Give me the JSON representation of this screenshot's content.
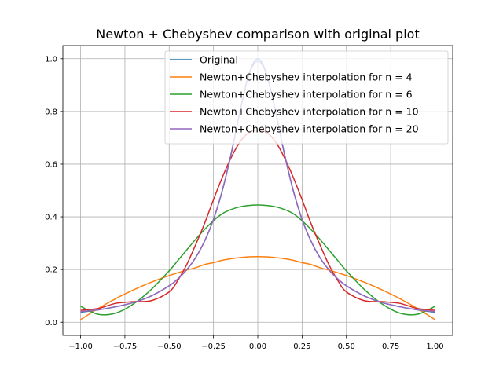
{
  "chart_data": {
    "type": "line",
    "title": "Newton + Chebyshev comparison with original plot",
    "xlabel": "",
    "ylabel": "",
    "xlim": [
      -1.1,
      1.1
    ],
    "ylim": [
      -0.05,
      1.05
    ],
    "grid": true,
    "legend_position": "top-right",
    "x_ticks": [
      -1.0,
      -0.75,
      -0.5,
      -0.25,
      0.0,
      0.25,
      0.5,
      0.75,
      1.0
    ],
    "x_tick_labels": [
      "−1.00",
      "−0.75",
      "−0.50",
      "−0.25",
      "0.00",
      "0.25",
      "0.50",
      "0.75",
      "1.00"
    ],
    "y_ticks": [
      0.0,
      0.2,
      0.4,
      0.6,
      0.8,
      1.0
    ],
    "y_tick_labels": [
      "0.0",
      "0.2",
      "0.4",
      "0.6",
      "0.8",
      "1.0"
    ],
    "x": [
      -1.0,
      -0.9,
      -0.8,
      -0.7,
      -0.6,
      -0.5,
      -0.45,
      -0.4,
      -0.35,
      -0.3,
      -0.25,
      -0.2,
      -0.15,
      -0.1,
      -0.05,
      0.0,
      0.05,
      0.1,
      0.15,
      0.2,
      0.25,
      0.3,
      0.35,
      0.4,
      0.45,
      0.5,
      0.6,
      0.7,
      0.8,
      0.9,
      1.0
    ],
    "series": [
      {
        "name": "Original",
        "color": "#1f77b4",
        "values": [
          0.038,
          0.047,
          0.059,
          0.075,
          0.1,
          0.138,
          0.165,
          0.2,
          0.246,
          0.308,
          0.39,
          0.5,
          0.64,
          0.8,
          0.941,
          1.0,
          0.941,
          0.8,
          0.64,
          0.5,
          0.39,
          0.308,
          0.246,
          0.2,
          0.165,
          0.138,
          0.1,
          0.075,
          0.059,
          0.047,
          0.038
        ]
      },
      {
        "name": "Newton+Chebyshev interpolation for n = 4",
        "color": "#ff7f0e",
        "values": [
          0.01,
          0.052,
          0.09,
          0.123,
          0.152,
          0.177,
          0.188,
          0.198,
          0.207,
          0.219,
          0.226,
          0.235,
          0.241,
          0.245,
          0.248,
          0.249,
          0.248,
          0.245,
          0.241,
          0.235,
          0.226,
          0.219,
          0.207,
          0.198,
          0.188,
          0.177,
          0.152,
          0.123,
          0.09,
          0.052,
          0.01
        ]
      },
      {
        "name": "Newton+Chebyshev interpolation for n = 6",
        "color": "#2ca02c",
        "values": [
          0.06,
          0.03,
          0.035,
          0.07,
          0.125,
          0.195,
          0.235,
          0.275,
          0.315,
          0.352,
          0.385,
          0.412,
          0.428,
          0.438,
          0.443,
          0.445,
          0.443,
          0.438,
          0.428,
          0.412,
          0.385,
          0.352,
          0.315,
          0.275,
          0.235,
          0.195,
          0.125,
          0.07,
          0.035,
          0.03,
          0.06
        ]
      },
      {
        "name": "Newton+Chebyshev interpolation for n = 10",
        "color": "#d62728",
        "values": [
          0.045,
          0.052,
          0.072,
          0.078,
          0.082,
          0.115,
          0.16,
          0.22,
          0.295,
          0.375,
          0.465,
          0.55,
          0.625,
          0.685,
          0.72,
          0.73,
          0.72,
          0.685,
          0.625,
          0.55,
          0.465,
          0.375,
          0.295,
          0.22,
          0.16,
          0.115,
          0.082,
          0.078,
          0.072,
          0.052,
          0.045
        ]
      },
      {
        "name": "Newton+Chebyshev interpolation for n = 20",
        "color": "#9467bd",
        "values": [
          0.04,
          0.047,
          0.059,
          0.075,
          0.1,
          0.138,
          0.165,
          0.2,
          0.246,
          0.308,
          0.39,
          0.5,
          0.64,
          0.8,
          0.94,
          0.99,
          0.94,
          0.8,
          0.64,
          0.5,
          0.39,
          0.308,
          0.246,
          0.2,
          0.165,
          0.138,
          0.1,
          0.075,
          0.059,
          0.047,
          0.04
        ]
      }
    ]
  }
}
